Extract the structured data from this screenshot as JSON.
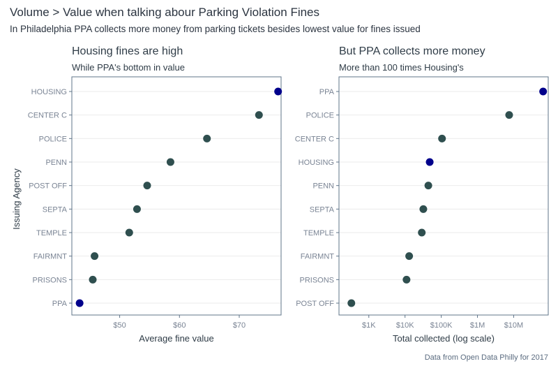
{
  "title": "Volume > Value when talking abour Parking Violation Fines",
  "subtitle": "In Philadelphia PPA collects more money from parking tickets besides lowest value for fines issued",
  "caption": "Data from Open Data Philly for 2017",
  "ylabel": "Issuing Agency",
  "colors": {
    "default": "#2f4f4f",
    "highlight": "#00008b"
  },
  "chart_data": [
    {
      "type": "scatter",
      "title": "Housing fines are high",
      "subtitle": "While PPA's bottom in value",
      "xlabel": "Average fine value",
      "ylabel": "Issuing Agency",
      "x_scale": "linear",
      "xlim": [
        42,
        77
      ],
      "xticks": [
        50,
        60,
        70
      ],
      "xtick_labels": [
        "$50",
        "$60",
        "$70"
      ],
      "categories": [
        "HOUSING",
        "CENTER C",
        "POLICE",
        "PENN",
        "POST OFF",
        "SEPTA",
        "TEMPLE",
        "FAIRMNT",
        "PRISONS",
        "PPA"
      ],
      "values": [
        76.5,
        73.3,
        64.6,
        58.5,
        54.6,
        52.9,
        51.6,
        45.8,
        45.5,
        43.3
      ],
      "highlight": [
        "HOUSING",
        "PPA"
      ],
      "grid": true
    },
    {
      "type": "scatter",
      "title": "But PPA collects more money",
      "subtitle": "More than 100 times Housing's",
      "xlabel": "Total collected (log scale)",
      "ylabel": "",
      "x_scale": "log10",
      "xlim": [
        150,
        90000000
      ],
      "xticks": [
        1000,
        10000,
        100000,
        1000000,
        10000000
      ],
      "xtick_labels": [
        "$1K",
        "$10K",
        "$100K",
        "$1M",
        "$10M"
      ],
      "categories": [
        "PPA",
        "POLICE",
        "CENTER C",
        "HOUSING",
        "PENN",
        "SEPTA",
        "TEMPLE",
        "FAIRMNT",
        "PRISONS",
        "POST OFF"
      ],
      "values": [
        65000000,
        7500000,
        105000,
        48000,
        44000,
        32000,
        29000,
        13000,
        11000,
        330
      ],
      "highlight": [
        "PPA",
        "HOUSING"
      ],
      "grid": true
    }
  ]
}
